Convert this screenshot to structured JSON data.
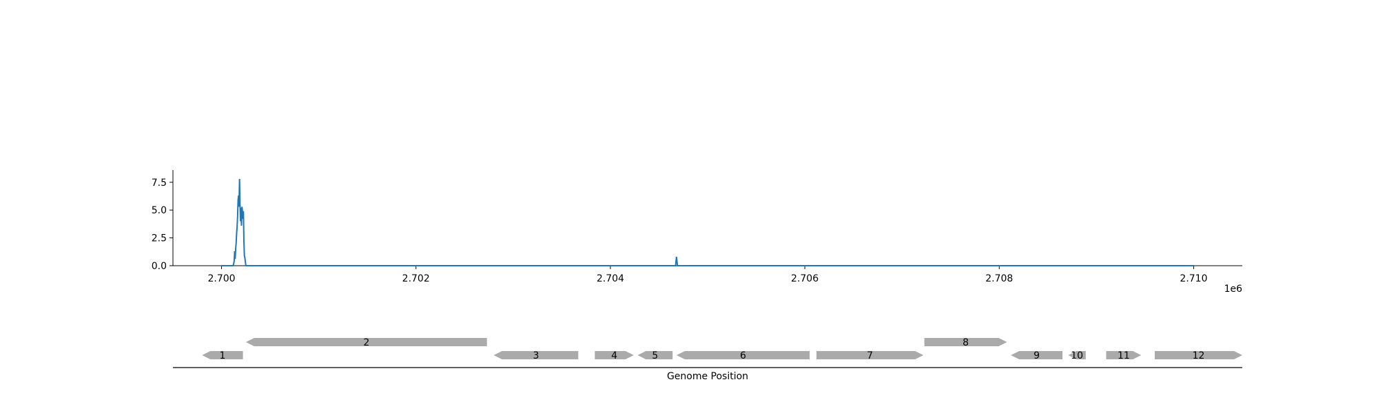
{
  "chart_data": [
    {
      "type": "line",
      "title": "",
      "xlabel": "",
      "ylabel": "",
      "x_offset_label": "1e6",
      "xlim": [
        2699500,
        2710500
      ],
      "ylim": [
        0,
        8.6
      ],
      "xticks": [
        2700000,
        2702000,
        2704000,
        2706000,
        2708000,
        2710000
      ],
      "xtick_labels": [
        "2.700",
        "2.702",
        "2.704",
        "2.706",
        "2.708",
        "2.710"
      ],
      "yticks": [
        0,
        2.5,
        5,
        7.5
      ],
      "ytick_labels": [
        "0.0",
        "2.5",
        "5.0",
        "7.5"
      ],
      "grid": false,
      "series": [
        {
          "color": "#1f77b4",
          "x": [
            2700000,
            2700120,
            2700130,
            2700135,
            2700140,
            2700145,
            2700150,
            2700155,
            2700160,
            2700165,
            2700170,
            2700175,
            2700180,
            2700185,
            2700190,
            2700195,
            2700200,
            2700205,
            2700210,
            2700215,
            2700220,
            2700225,
            2700230,
            2700235,
            2700240,
            2700250,
            2700400,
            2704670,
            2704680,
            2704690,
            2704700,
            2710000
          ],
          "y": [
            0,
            0,
            0.4,
            1.3,
            0.6,
            1.5,
            2.0,
            2.9,
            3.5,
            4.4,
            5.9,
            6.3,
            5.3,
            7.8,
            5.5,
            4.0,
            5.2,
            3.6,
            5.3,
            4.9,
            4.2,
            4.9,
            2.2,
            0.9,
            0.7,
            0,
            0,
            0,
            0.8,
            0,
            0,
            0
          ]
        }
      ]
    },
    {
      "type": "gene_map",
      "xlabel": "Genome Position",
      "genes": [
        {
          "label": "1",
          "start": 2699800,
          "end": 2700220,
          "strand": "-",
          "track": 0
        },
        {
          "label": "2",
          "start": 2700250,
          "end": 2702730,
          "strand": "-",
          "track": 1
        },
        {
          "label": "3",
          "start": 2702800,
          "end": 2703670,
          "strand": "-",
          "track": 0
        },
        {
          "label": "4",
          "start": 2703840,
          "end": 2704240,
          "strand": "+",
          "track": 0
        },
        {
          "label": "5",
          "start": 2704280,
          "end": 2704640,
          "strand": "-",
          "track": 0
        },
        {
          "label": "6",
          "start": 2704680,
          "end": 2706050,
          "strand": "-",
          "track": 0
        },
        {
          "label": "7",
          "start": 2706120,
          "end": 2707220,
          "strand": "+",
          "track": 0
        },
        {
          "label": "8",
          "start": 2707230,
          "end": 2708080,
          "strand": "+",
          "track": 1
        },
        {
          "label": "9",
          "start": 2708120,
          "end": 2708650,
          "strand": "-",
          "track": 0
        },
        {
          "label": "10",
          "start": 2708710,
          "end": 2708890,
          "strand": "-",
          "track": 0
        },
        {
          "label": "11",
          "start": 2709100,
          "end": 2709460,
          "strand": "+",
          "track": 0
        },
        {
          "label": "12",
          "start": 2709600,
          "end": 2710500,
          "strand": "+",
          "track": 0
        }
      ],
      "colors": {
        "gene": "#aaaaaa",
        "line": "#000000"
      }
    }
  ]
}
